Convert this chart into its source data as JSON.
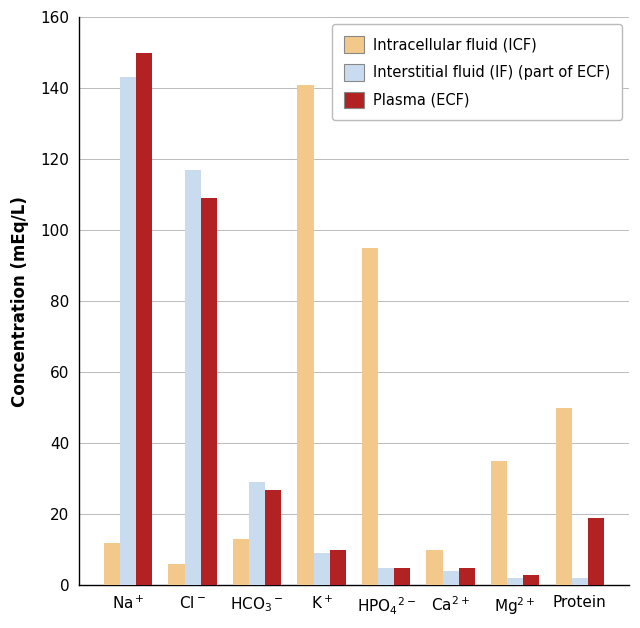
{
  "categories_math": [
    "Na$^+$",
    "Cl$^-$",
    "HCO$_3$$^-$",
    "K$^+$",
    "HPO$_4$$^{2-}$",
    "Ca$^{2+}$",
    "Mg$^{2+}$",
    "Protein"
  ],
  "ICF": [
    12,
    6,
    13,
    141,
    95,
    10,
    35,
    50
  ],
  "IF": [
    143,
    117,
    29,
    9,
    5,
    4,
    2,
    2
  ],
  "Plasma": [
    150,
    109,
    27,
    10,
    5,
    5,
    3,
    19
  ],
  "icf_color": "#F2C98A",
  "if_color": "#C9DCEF",
  "plasma_color": "#B22222",
  "ylabel": "Concentration (mEq/L)",
  "ylim": [
    0,
    160
  ],
  "yticks": [
    0,
    20,
    40,
    60,
    80,
    100,
    120,
    140,
    160
  ],
  "legend_labels": [
    "Intracellular fluid (ICF)",
    "Interstitial fluid (IF) (part of ECF)",
    "Plasma (ECF)"
  ],
  "bar_width": 0.25,
  "axis_label_fontsize": 12,
  "tick_fontsize": 11,
  "legend_fontsize": 10.5,
  "figsize": [
    6.4,
    6.28
  ],
  "dpi": 100
}
